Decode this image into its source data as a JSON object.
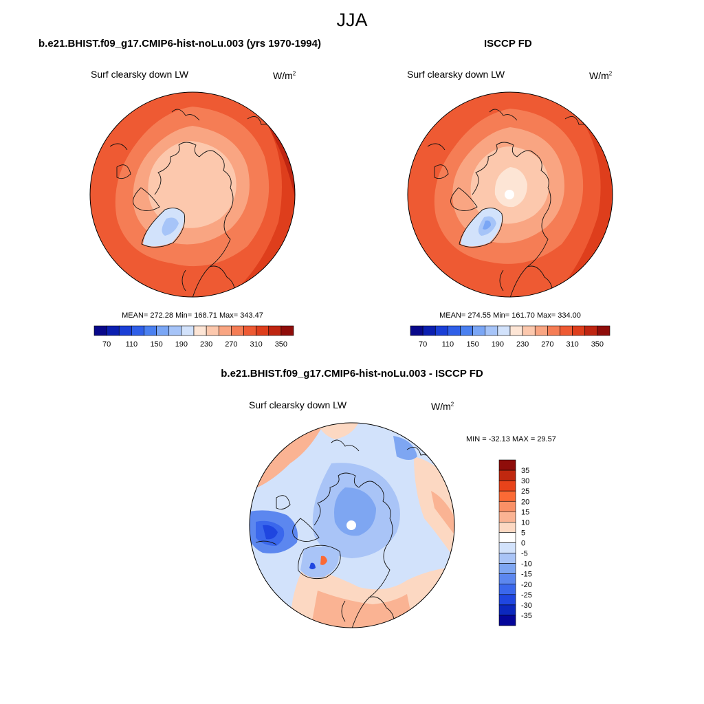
{
  "figure": {
    "season": "JJA"
  },
  "panels": [
    {
      "id": "model",
      "title": "b.e21.BHIST.f09_g17.CMIP6-hist-noLu.003 (yrs 1970-1994)",
      "variable": "Surf clearsky down LW",
      "unit_base": "W/m",
      "unit_exp": "2",
      "stats_text": "MEAN= 272.28  Min= 168.71  Max= 343.47",
      "stats": {
        "mean": 272.28,
        "min": 168.71,
        "max": 343.47
      },
      "pole_missing": false
    },
    {
      "id": "obs",
      "title": "ISCCP FD",
      "variable": "Surf clearsky down LW",
      "unit_base": "W/m",
      "unit_exp": "2",
      "stats_text": "MEAN= 274.55  Min= 161.70  Max= 334.00",
      "stats": {
        "mean": 274.55,
        "min": 161.7,
        "max": 334.0
      },
      "pole_missing": true
    },
    {
      "id": "diff",
      "title": "b.e21.BHIST.f09_g17.CMIP6-hist-noLu.003 - ISCCP FD",
      "variable": "Surf clearsky down LW",
      "unit_base": "W/m",
      "unit_exp": "2",
      "stats_text": "MIN = -32.13 MAX =  29.57",
      "stats": {
        "min": -32.13,
        "max": 29.57
      },
      "pole_missing": true
    }
  ],
  "colorbars": {
    "absolute": {
      "colors": [
        "#08088a",
        "#0b1fb0",
        "#1a3fd6",
        "#2f5fe8",
        "#4a80f0",
        "#7aa6f5",
        "#a6c4f8",
        "#d2e2fb",
        "#fde5d5",
        "#fcc8ad",
        "#f9a582",
        "#f57d55",
        "#ee5a33",
        "#de3e1c",
        "#bf2511",
        "#8f0d0a"
      ],
      "tick_labels": [
        "70",
        "110",
        "150",
        "190",
        "230",
        "270",
        "310",
        "350"
      ],
      "tick_values": [
        70,
        110,
        150,
        190,
        230,
        270,
        310,
        350
      ]
    },
    "difference": {
      "colors": [
        "#8f0d0a",
        "#c0280f",
        "#e8431a",
        "#fb6a35",
        "#f99066",
        "#fab393",
        "#fcd8c2",
        "#ffffff",
        "#d2e2fb",
        "#a9c4f7",
        "#7ea6f2",
        "#5c87ef",
        "#3a67ec",
        "#1f46e0",
        "#0c28be",
        "#05069a"
      ],
      "tick_labels": [
        "35",
        "30",
        "25",
        "20",
        "15",
        "10",
        "5",
        "0",
        "-5",
        "-10",
        "-15",
        "-20",
        "-25",
        "-30",
        "-35"
      ]
    }
  }
}
